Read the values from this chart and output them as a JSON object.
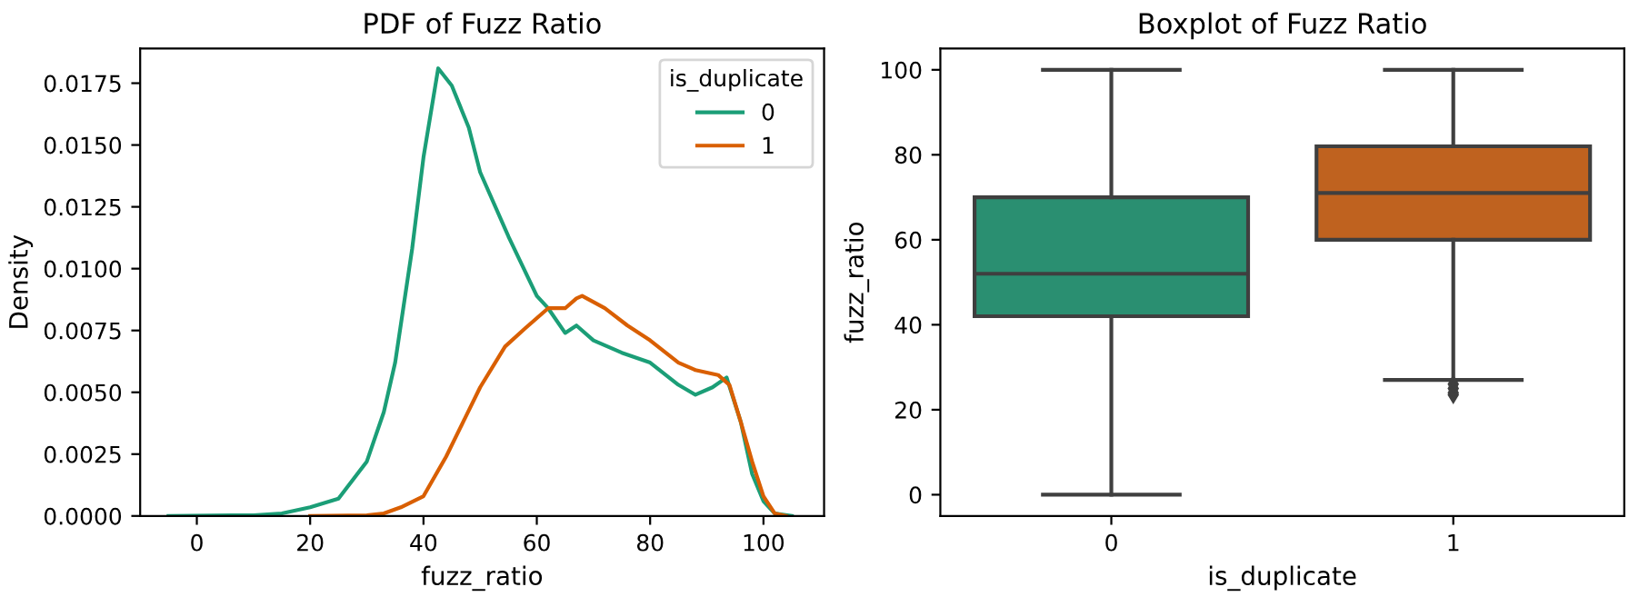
{
  "chart_data": [
    {
      "type": "line",
      "title": "PDF of Fuzz Ratio",
      "xlabel": "fuzz_ratio",
      "ylabel": "Density",
      "legend_title": "is_duplicate",
      "legend": "top right",
      "grid": false,
      "marker": "none",
      "line_style": "solid",
      "xlim": [
        -10,
        110.7
      ],
      "xticks": [
        0,
        20,
        40,
        60,
        80,
        100
      ],
      "ylim": [
        0,
        0.0189
      ],
      "yticks": [
        {
          "value": 0,
          "label": "0.0000"
        },
        {
          "value": 0.0025,
          "label": "0.0025"
        },
        {
          "value": 0.005,
          "label": "0.0050"
        },
        {
          "value": 0.0075,
          "label": "0.0075"
        },
        {
          "value": 0.01,
          "label": "0.0100"
        },
        {
          "value": 0.0125,
          "label": "0.0125"
        },
        {
          "value": 0.015,
          "label": "0.0150"
        },
        {
          "value": 0.0175,
          "label": "0.0175"
        }
      ],
      "series": [
        {
          "name": "0",
          "color": "#1b9e77",
          "x": [
            -5,
            10,
            15,
            20,
            25,
            30,
            33,
            35,
            38,
            40,
            42.6,
            45,
            48,
            50,
            55,
            60,
            62,
            65,
            67,
            70,
            75,
            80,
            85,
            88,
            91,
            93.5,
            96,
            98,
            100,
            102,
            105
          ],
          "values": [
            0,
            3e-05,
            0.0001,
            0.00035,
            0.0007,
            0.0022,
            0.0042,
            0.0062,
            0.0108,
            0.0145,
            0.0181,
            0.0174,
            0.0157,
            0.0139,
            0.0113,
            0.0089,
            0.0084,
            0.0074,
            0.0077,
            0.0071,
            0.0066,
            0.0062,
            0.0053,
            0.0049,
            0.0052,
            0.0056,
            0.0038,
            0.0017,
            0.0006,
            0.0001,
            0
          ]
        },
        {
          "name": "1",
          "color": "#d95f02",
          "x": [
            20,
            30,
            33,
            36,
            40,
            44,
            47,
            50,
            54.4,
            58,
            62,
            65,
            67,
            68,
            72,
            76,
            80,
            85,
            88,
            92,
            94,
            96,
            98,
            100,
            102,
            104
          ],
          "values": [
            0,
            3e-05,
            0.0001,
            0.00035,
            0.0008,
            0.0024,
            0.0038,
            0.0052,
            0.00685,
            0.0076,
            0.0084,
            0.0084,
            0.0088,
            0.0089,
            0.0084,
            0.0077,
            0.0071,
            0.0062,
            0.0059,
            0.0057,
            0.0053,
            0.0038,
            0.0022,
            0.0008,
            0.0001,
            0
          ]
        }
      ]
    },
    {
      "type": "box",
      "title": "Boxplot of Fuzz Ratio",
      "xlabel": "is_duplicate",
      "ylabel": "fuzz_ratio",
      "categories": [
        "0",
        "1"
      ],
      "colors": [
        "#2a8f71",
        "#bf621f"
      ],
      "ylim": [
        -5,
        105
      ],
      "yticks": [
        0,
        20,
        40,
        60,
        80,
        100
      ],
      "grid": false,
      "boxes": [
        {
          "low": 0,
          "q1": 42,
          "median": 52,
          "q3": 70,
          "high": 100
        },
        {
          "low": 27,
          "q1": 60,
          "median": 71,
          "q3": 82,
          "high": 100,
          "outliers": [
            23.5,
            24,
            25,
            26
          ]
        }
      ]
    }
  ]
}
